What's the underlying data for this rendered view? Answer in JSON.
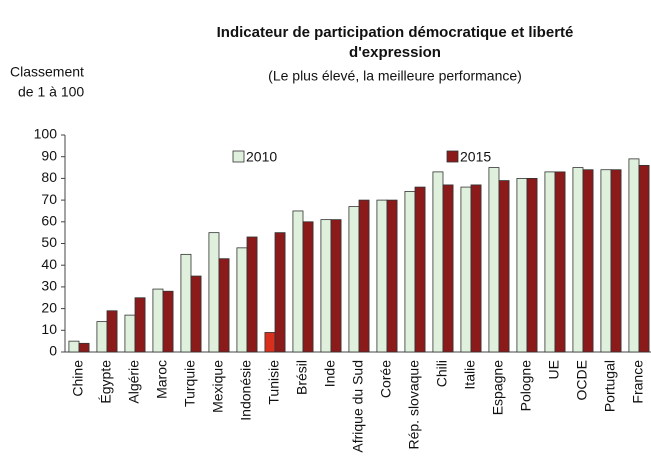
{
  "chart_data": {
    "type": "bar",
    "title": [
      "Indicateur de participation démocratique et liberté",
      "d'expression"
    ],
    "subtitle": "(Le plus élevé, la meilleure performance)",
    "y_label": [
      "Classement",
      "de 1 à 100"
    ],
    "categories": [
      "Chine",
      "Égypte",
      "Algérie",
      "Maroc",
      "Turquie",
      "Mexique",
      "Indonésie",
      "Tunisie",
      "Brésil",
      "Inde",
      "Afrique du Sud",
      "Corée",
      "Rép. slovaque",
      "Chili",
      "Italie",
      "Espagne",
      "Pologne",
      "UE",
      "OCDE",
      "Portugal",
      "France"
    ],
    "series": [
      {
        "name": "2010",
        "color": "#dff0dc",
        "highlight": {
          "index": 7,
          "color": "#d9301e"
        },
        "values": [
          5,
          14,
          17,
          29,
          45,
          55,
          48,
          9,
          65,
          61,
          67,
          70,
          74,
          83,
          76,
          85,
          80,
          83,
          85,
          84,
          89
        ]
      },
      {
        "name": "2015",
        "color": "#8b1a1a",
        "values": [
          4,
          19,
          25,
          28,
          35,
          43,
          53,
          55,
          60,
          61,
          70,
          70,
          76,
          77,
          77,
          79,
          80,
          83,
          84,
          84,
          86
        ]
      }
    ],
    "ylim": [
      0,
      100
    ],
    "yticks": [
      0,
      10,
      20,
      30,
      40,
      50,
      60,
      70,
      80,
      90,
      100
    ],
    "grid": false
  }
}
